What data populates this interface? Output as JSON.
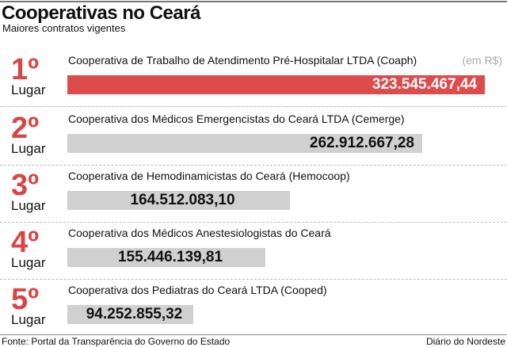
{
  "chart_data": {
    "type": "bar",
    "orientation": "horizontal",
    "title": "Cooperativas no Ceará",
    "subtitle": "Maiores contratos vigentes",
    "unit": "(em R$)",
    "rank_suffix": "Lugar",
    "items": [
      {
        "rank": "1º",
        "name": "Cooperativa de Trabalho de Atendimento Pré-Hospitalar LTDA (Coaph)",
        "value": 323545467.44,
        "label": "323.545.467,44"
      },
      {
        "rank": "2º",
        "name": "Cooperativa dos Médicos Emergencistas do Ceará LTDA (Cemerge)",
        "value": 262912667.28,
        "label": "262.912.667,28"
      },
      {
        "rank": "3º",
        "name": "Cooperativa de Hemodinamicistas do Ceará (Hemocoop)",
        "value": 164512083.1,
        "label": "164.512.083,10"
      },
      {
        "rank": "4º",
        "name": "Cooperativa dos Médicos Anestesiologistas do Ceará",
        "value": 155446139.81,
        "label": "155.446.139,81"
      },
      {
        "rank": "5º",
        "name": "Cooperativa dos Pediatras do Ceará LTDA (Cooped)",
        "value": 94252855.32,
        "label": "94.252.855,32"
      }
    ],
    "colors": {
      "first": "#de4b4b",
      "other": "#d0d0d0",
      "rank": "#d94545"
    }
  },
  "footer": {
    "source": "Fonte: Portal da Transparência do Governo do Estado",
    "brand": "Diário do Nordeste"
  }
}
